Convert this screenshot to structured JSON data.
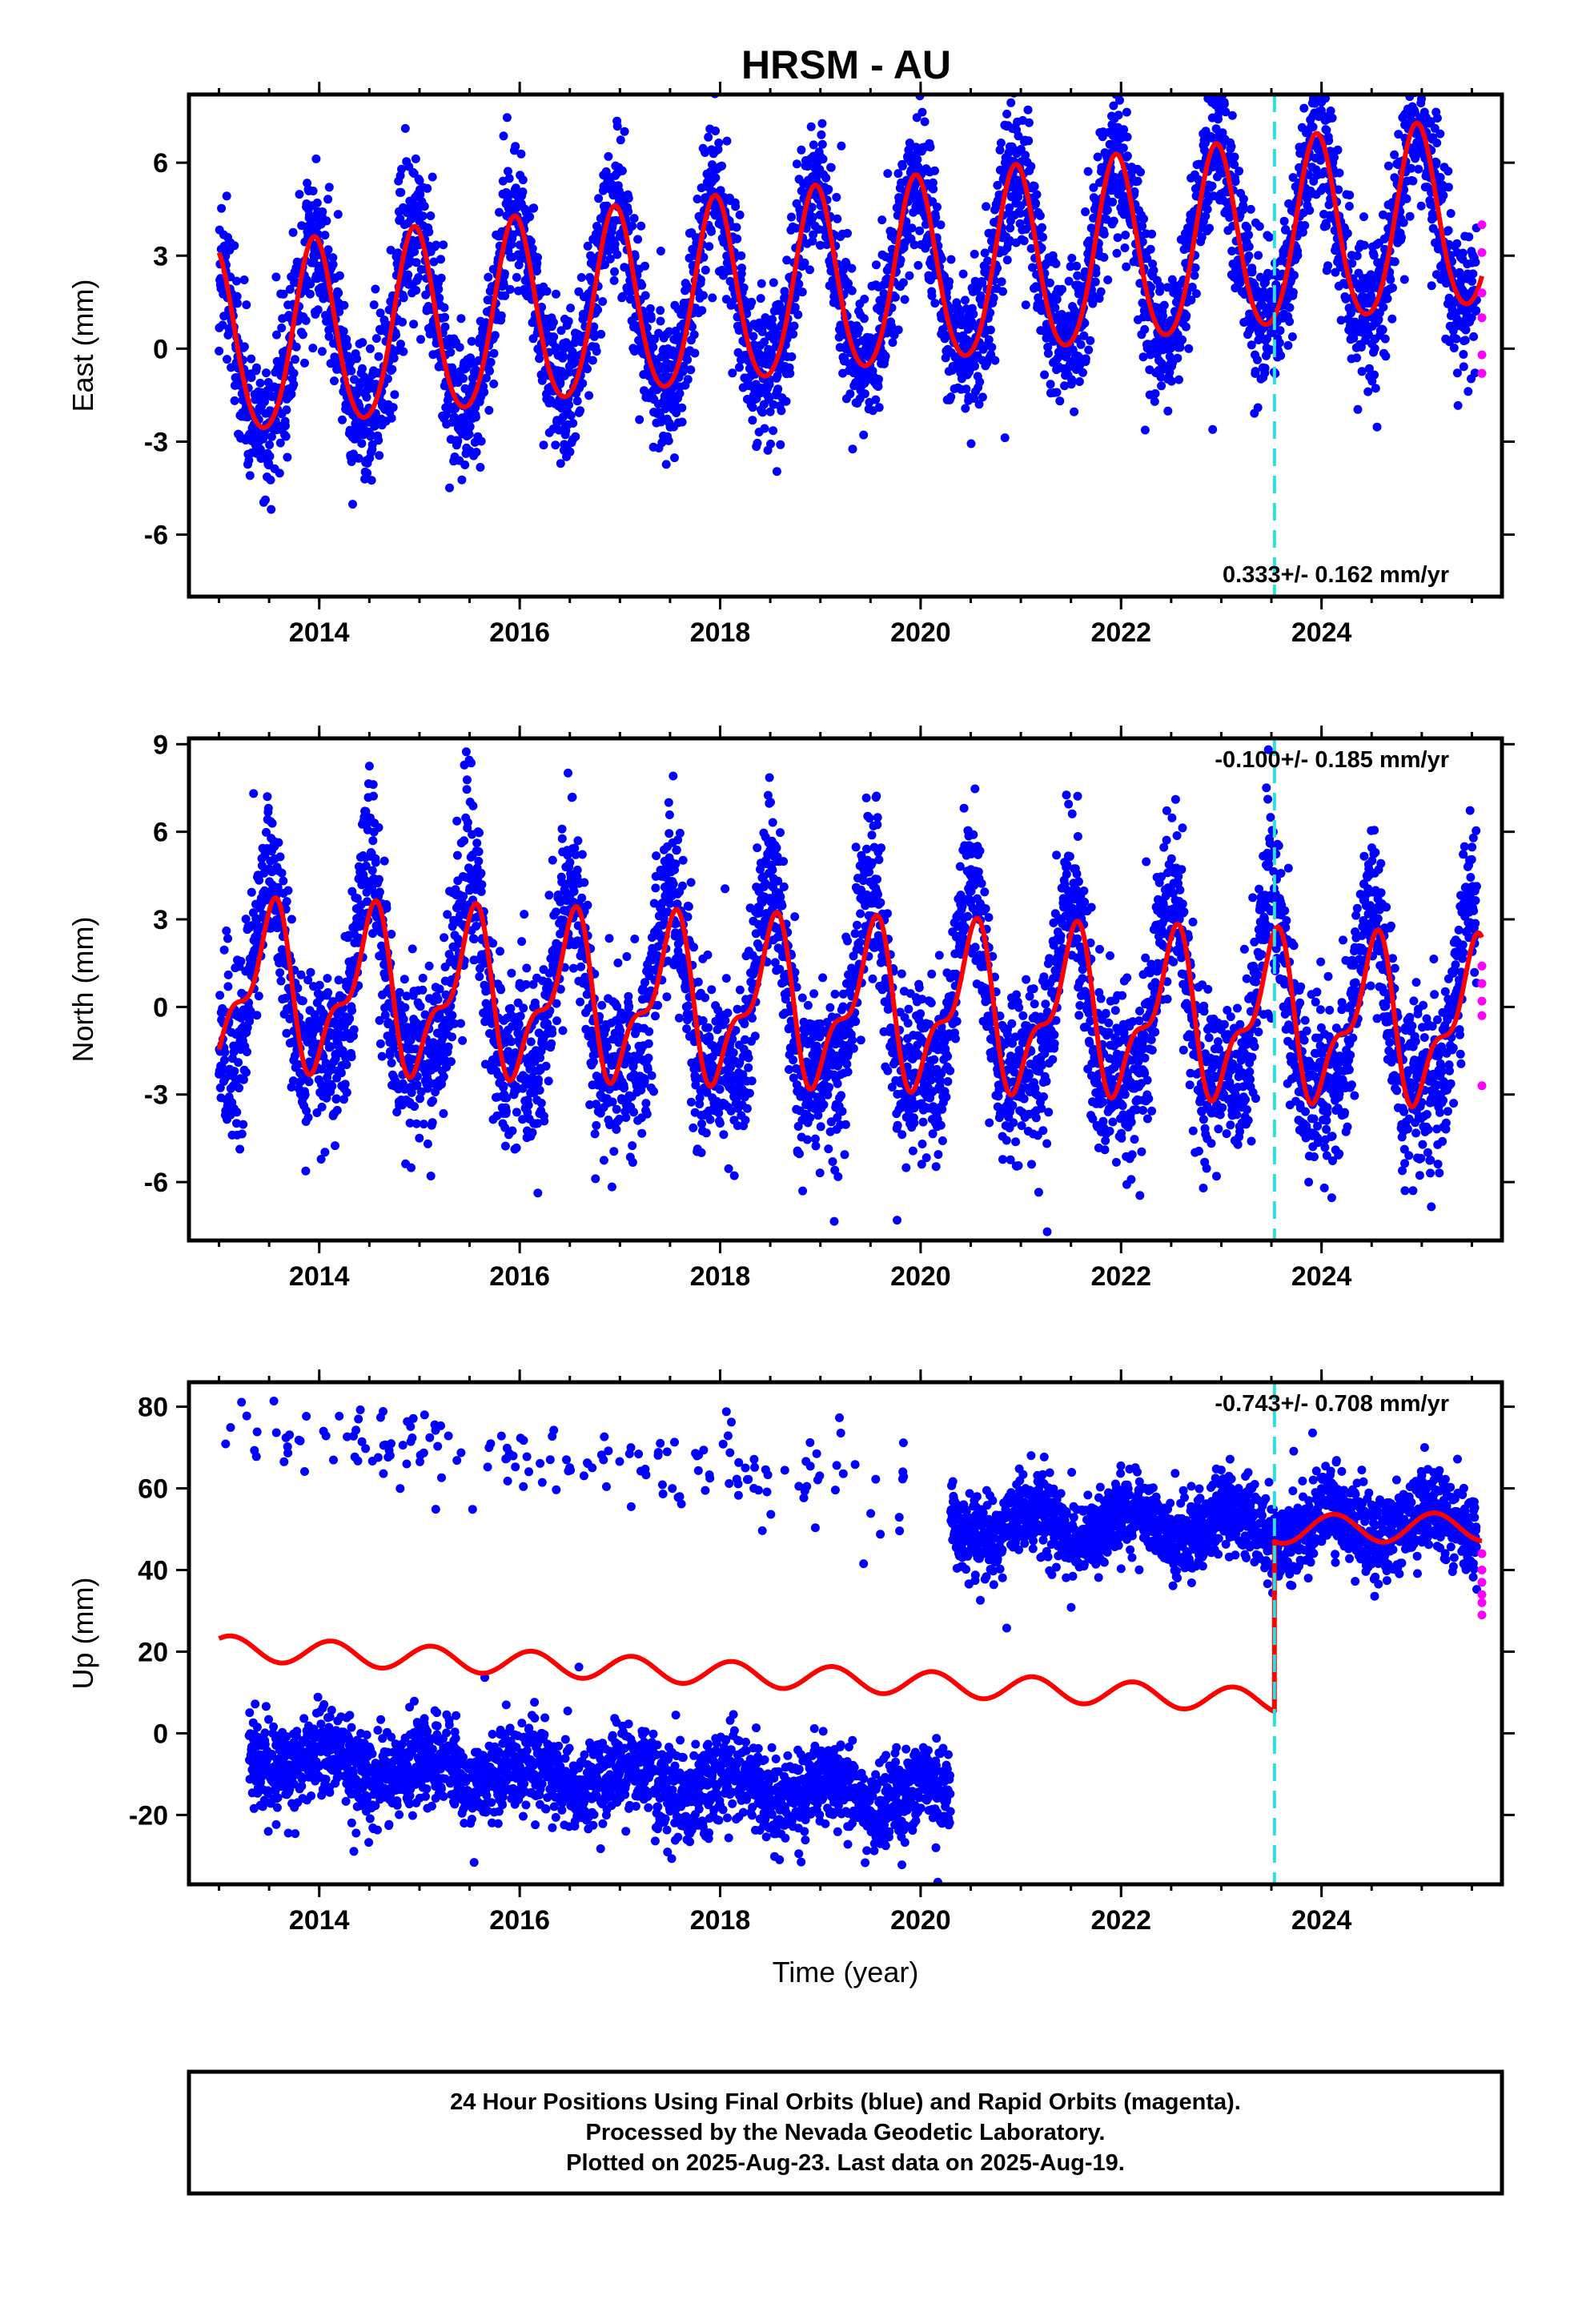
{
  "chart_data": [
    {
      "type": "scatter",
      "title": "HRSM - AU",
      "ylabel": "East (mm)",
      "xlabel": "",
      "xlim": [
        2012.7,
        2025.8
      ],
      "ylim": [
        -8,
        8.2
      ],
      "yticks": [
        6,
        3,
        0,
        -3,
        -6
      ],
      "xticks": [
        2014,
        2016,
        2018,
        2020,
        2022,
        2024
      ],
      "rate_label": "0.333+/- 0.162 mm/yr",
      "rate_position": "bottom-right",
      "grid": false,
      "colors": {
        "final": "#0000ff",
        "rapid": "#ff00ff",
        "model": "#ff0000",
        "event": "#33dddd"
      },
      "event_line_year": 2023.53,
      "series": [
        {
          "name": "Final Orbits (blue)",
          "model": {
            "offset": 0.0,
            "trend": 0.333,
            "amplitude": 3.0,
            "phase_peak": 0.95,
            "amp2": 0.3,
            "noise": 1.15,
            "step": 0
          },
          "x_range": [
            2013.0,
            2025.55
          ],
          "gaps": []
        },
        {
          "name": "Rapid Orbits (magenta)",
          "x": [
            2025.6,
            2025.6,
            2025.6,
            2025.6,
            2025.6,
            2025.6
          ],
          "y": [
            4.0,
            3.1,
            1.8,
            1.0,
            -0.2,
            -0.8
          ]
        },
        {
          "name": "model",
          "line": true,
          "x_range": [
            2013.0,
            2025.6
          ]
        }
      ]
    },
    {
      "type": "scatter",
      "ylabel": "North (mm)",
      "xlabel": "",
      "xlim": [
        2012.7,
        2025.8
      ],
      "ylim": [
        -8,
        9.2
      ],
      "yticks": [
        9,
        6,
        3,
        0,
        -3,
        -6
      ],
      "xticks": [
        2014,
        2016,
        2018,
        2020,
        2022,
        2024
      ],
      "rate_label": "-0.100+/- 0.185 mm/yr",
      "rate_position": "top-right",
      "grid": false,
      "colors": {
        "final": "#0000ff",
        "rapid": "#ff00ff",
        "model": "#ff0000",
        "event": "#33dddd"
      },
      "event_line_year": 2023.53,
      "series": [
        {
          "name": "Final Orbits (blue)",
          "model": {
            "offset": 0.6,
            "trend": -0.1,
            "amplitude": 3.1,
            "phase_peak": 0.5,
            "amp2": 1.2,
            "noise": 1.4,
            "step": 0
          },
          "x_range": [
            2013.0,
            2025.55
          ],
          "gaps": []
        },
        {
          "name": "Rapid Orbits (magenta)",
          "x": [
            2025.6,
            2025.6,
            2025.6,
            2025.6,
            2025.6
          ],
          "y": [
            1.4,
            0.8,
            0.2,
            -0.3,
            -2.7
          ]
        },
        {
          "name": "model",
          "line": true,
          "x_range": [
            2013.0,
            2025.6
          ]
        }
      ]
    },
    {
      "type": "scatter",
      "ylabel": "Up (mm)",
      "xlabel": "Time (year)",
      "xlim": [
        2012.7,
        2025.8
      ],
      "ylim": [
        -37,
        86
      ],
      "yticks": [
        80,
        60,
        40,
        20,
        0,
        -20
      ],
      "xticks": [
        2014,
        2016,
        2018,
        2020,
        2022,
        2024
      ],
      "rate_label": "-0.743+/- 0.708 mm/yr",
      "rate_position": "top-right",
      "grid": false,
      "colors": {
        "final": "#0000ff",
        "rapid": "#ff00ff",
        "model": "#ff0000",
        "event": "#33dddd"
      },
      "event_line_year": 2023.53,
      "series": [
        {
          "name": "Final Orbits (blue) - upper cluster early",
          "model": {
            "offset": 75.0,
            "trend": -2.2,
            "amplitude": 2.0,
            "phase_peak": 0.1,
            "amp2": 0,
            "noise": 5.0,
            "step": 0
          },
          "x_range": [
            2013.0,
            2019.85
          ],
          "density": 0.07
        },
        {
          "name": "Final Orbits (blue) - lower cluster",
          "model": {
            "offset": -6.0,
            "trend": -1.4,
            "amplitude": 3.5,
            "phase_peak": 0.1,
            "amp2": 0,
            "noise": 5.5,
            "step": 0
          },
          "x_range": [
            2013.3,
            2020.3
          ],
          "density": 0.9
        },
        {
          "name": "Final Orbits (blue) - upper cluster late",
          "model": {
            "offset": 51.0,
            "trend": 0.0,
            "amplitude": 3.8,
            "phase_peak": 0.1,
            "amp2": 0,
            "noise": 4.8,
            "step": 0
          },
          "x_range": [
            2020.3,
            2025.55
          ],
          "density": 1.0
        },
        {
          "name": "Rapid Orbits (magenta)",
          "x": [
            2025.6,
            2025.6,
            2025.6,
            2025.6,
            2025.6,
            2025.6
          ],
          "y": [
            44,
            40,
            37,
            34,
            32,
            29
          ]
        },
        {
          "name": "model",
          "line": true,
          "x_range": [
            2013.0,
            2025.6
          ],
          "pre": {
            "offset": 21.0,
            "trend": -1.25,
            "amplitude": 3.0,
            "phase_peak": 0.12
          },
          "post": {
            "offset": 50.0,
            "trend": 0.3,
            "amplitude": 3.5,
            "phase_peak": 0.12
          }
        }
      ]
    }
  ],
  "footer": {
    "line1": "24 Hour Positions Using Final Orbits (blue) and Rapid Orbits (magenta).",
    "line2": "Processed by the Nevada Geodetic Laboratory.",
    "line3": "Plotted on 2025-Aug-23. Last data on 2025-Aug-19."
  }
}
